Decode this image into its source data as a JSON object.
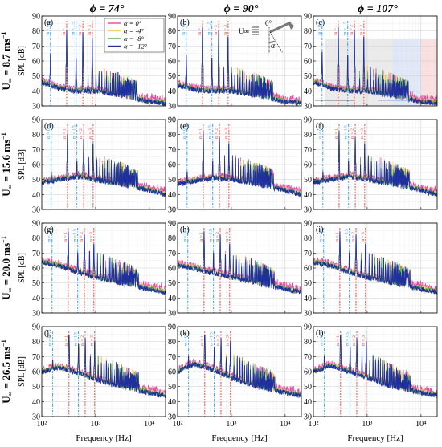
{
  "figure": {
    "column_titles": [
      "ϕ = 74°",
      "ϕ = 90°",
      "ϕ = 107°"
    ],
    "row_titles": [
      {
        "prefix": "U",
        "sub": "∞",
        "value": " = 8.7 ms",
        "sup": "−1"
      },
      {
        "prefix": "U",
        "sub": "∞",
        "value": " = 15.6 ms",
        "sup": "−1"
      },
      {
        "prefix": "U",
        "sub": "∞",
        "value": " = 20.0 ms",
        "sup": "−1"
      },
      {
        "prefix": "U",
        "sub": "∞",
        "value": " = 26.5 ms",
        "sup": "−1"
      }
    ],
    "panel_letters": [
      "(a)",
      "(b)",
      "(c)",
      "(d)",
      "(e)",
      "(f)",
      "(g)",
      "(h)",
      "(i)",
      "(j)",
      "(k)",
      "(l)"
    ],
    "ylabel": "SPL [dB]",
    "xlabel": "Frequency [Hz]",
    "xtick_labels": [
      "10²",
      "10³",
      "10⁴"
    ],
    "inset": {
      "u_label": "U∞",
      "angle_label": "0°",
      "alpha_label": "α"
    },
    "harmonic_labels": {
      "blue": [
        "m = 0.5",
        "m = 1.5"
      ],
      "red": [
        "m = 1",
        "m = 2",
        "m = 3"
      ]
    },
    "colors": {
      "alpha_0": "#e8489e",
      "alpha_m4": "#f3d35b",
      "alpha_m8": "#4caf50",
      "alpha_m12": "#1f2f9e",
      "blue_marker": "#2196f3",
      "red_marker": "#e53935"
    }
  },
  "chart_data": [
    {
      "type": "line",
      "panel": "(a)",
      "xscale": "log",
      "xlim": [
        100,
        20000
      ],
      "ylim": [
        30,
        90
      ],
      "yticks": [
        30,
        40,
        50,
        60,
        70,
        80,
        90
      ],
      "legend": [
        "α = 0°",
        "α = -4°",
        "α = -8°",
        "α = -12°"
      ],
      "legend_loc": "top",
      "fundamental_hz": 290,
      "peaks": [
        [
          145,
          65
        ],
        [
          290,
          80
        ],
        [
          435,
          62
        ],
        [
          580,
          79
        ],
        [
          870,
          75
        ]
      ],
      "baseline": [
        [
          100,
          46
        ],
        [
          200,
          42
        ],
        [
          400,
          40
        ],
        [
          1000,
          40
        ],
        [
          3000,
          37
        ],
        [
          10000,
          33
        ],
        [
          20000,
          32
        ]
      ]
    },
    {
      "type": "line",
      "panel": "(b)",
      "xscale": "log",
      "xlim": [
        100,
        20000
      ],
      "ylim": [
        30,
        90
      ],
      "fundamental_hz": 290,
      "peaks": [
        [
          145,
          64
        ],
        [
          290,
          82
        ],
        [
          435,
          62
        ],
        [
          580,
          80
        ],
        [
          870,
          76
        ]
      ],
      "baseline": [
        [
          100,
          44
        ],
        [
          200,
          41
        ],
        [
          400,
          40
        ],
        [
          1000,
          40
        ],
        [
          3000,
          37
        ],
        [
          10000,
          33
        ],
        [
          20000,
          32
        ]
      ]
    },
    {
      "type": "line",
      "panel": "(c)",
      "xscale": "log",
      "xlim": [
        100,
        20000
      ],
      "ylim": [
        30,
        90
      ],
      "fundamental_hz": 290,
      "peaks": [
        [
          145,
          66
        ],
        [
          290,
          82
        ],
        [
          435,
          64
        ],
        [
          580,
          80
        ],
        [
          870,
          76
        ]
      ],
      "baseline": [
        [
          100,
          46
        ],
        [
          200,
          42
        ],
        [
          400,
          40
        ],
        [
          1000,
          40
        ],
        [
          3000,
          37
        ],
        [
          10000,
          33
        ],
        [
          20000,
          32
        ]
      ]
    },
    {
      "type": "line",
      "panel": "(d)",
      "xscale": "log",
      "xlim": [
        100,
        20000
      ],
      "ylim": [
        30,
        90
      ],
      "fundamental_hz": 300,
      "peaks": [
        [
          150,
          55
        ],
        [
          300,
          80
        ],
        [
          450,
          62
        ],
        [
          600,
          77
        ],
        [
          900,
          74
        ]
      ],
      "baseline": [
        [
          100,
          48
        ],
        [
          200,
          50
        ],
        [
          500,
          52
        ],
        [
          1000,
          50
        ],
        [
          3000,
          47
        ],
        [
          10000,
          43
        ],
        [
          20000,
          40
        ]
      ]
    },
    {
      "type": "line",
      "panel": "(e)",
      "xscale": "log",
      "xlim": [
        100,
        20000
      ],
      "ylim": [
        30,
        90
      ],
      "fundamental_hz": 300,
      "peaks": [
        [
          150,
          55
        ],
        [
          300,
          82
        ],
        [
          450,
          62
        ],
        [
          600,
          78
        ],
        [
          900,
          74
        ]
      ],
      "baseline": [
        [
          100,
          47
        ],
        [
          200,
          49
        ],
        [
          500,
          51
        ],
        [
          1000,
          50
        ],
        [
          3000,
          47
        ],
        [
          10000,
          43
        ],
        [
          20000,
          40
        ]
      ]
    },
    {
      "type": "line",
      "panel": "(f)",
      "xscale": "log",
      "xlim": [
        100,
        20000
      ],
      "ylim": [
        30,
        90
      ],
      "fundamental_hz": 300,
      "peaks": [
        [
          150,
          55
        ],
        [
          300,
          82
        ],
        [
          450,
          62
        ],
        [
          600,
          78
        ],
        [
          900,
          74
        ]
      ],
      "baseline": [
        [
          100,
          48
        ],
        [
          200,
          50
        ],
        [
          500,
          52
        ],
        [
          1000,
          50
        ],
        [
          3000,
          47
        ],
        [
          10000,
          43
        ],
        [
          20000,
          40
        ]
      ]
    },
    {
      "type": "line",
      "panel": "(g)",
      "xscale": "log",
      "xlim": [
        100,
        20000
      ],
      "ylim": [
        30,
        90
      ],
      "fundamental_hz": 310,
      "peaks": [
        [
          155,
          62
        ],
        [
          310,
          84
        ],
        [
          465,
          70
        ],
        [
          620,
          82
        ],
        [
          930,
          76
        ]
      ],
      "baseline": [
        [
          100,
          64
        ],
        [
          200,
          62
        ],
        [
          400,
          58
        ],
        [
          1000,
          54
        ],
        [
          3000,
          50
        ],
        [
          10000,
          46
        ],
        [
          20000,
          44
        ]
      ]
    },
    {
      "type": "line",
      "panel": "(h)",
      "xscale": "log",
      "xlim": [
        100,
        20000
      ],
      "ylim": [
        30,
        90
      ],
      "fundamental_hz": 310,
      "peaks": [
        [
          155,
          62
        ],
        [
          310,
          84
        ],
        [
          465,
          70
        ],
        [
          620,
          82
        ],
        [
          930,
          76
        ]
      ],
      "baseline": [
        [
          100,
          62
        ],
        [
          200,
          60
        ],
        [
          400,
          57
        ],
        [
          1000,
          54
        ],
        [
          3000,
          50
        ],
        [
          10000,
          46
        ],
        [
          20000,
          44
        ]
      ]
    },
    {
      "type": "line",
      "panel": "(i)",
      "xscale": "log",
      "xlim": [
        100,
        20000
      ],
      "ylim": [
        30,
        90
      ],
      "fundamental_hz": 310,
      "peaks": [
        [
          155,
          62
        ],
        [
          310,
          84
        ],
        [
          465,
          70
        ],
        [
          620,
          82
        ],
        [
          930,
          76
        ]
      ],
      "baseline": [
        [
          100,
          64
        ],
        [
          200,
          62
        ],
        [
          400,
          58
        ],
        [
          1000,
          54
        ],
        [
          3000,
          50
        ],
        [
          10000,
          46
        ],
        [
          20000,
          44
        ]
      ]
    },
    {
      "type": "line",
      "panel": "(j)",
      "xscale": "log",
      "xlim": [
        100,
        20000
      ],
      "ylim": [
        30,
        90
      ],
      "fundamental_hz": 320,
      "peaks": [
        [
          160,
          68
        ],
        [
          320,
          84
        ],
        [
          480,
          78
        ],
        [
          640,
          82
        ],
        [
          960,
          80
        ]
      ],
      "baseline": [
        [
          100,
          60
        ],
        [
          200,
          63
        ],
        [
          400,
          60
        ],
        [
          1000,
          55
        ],
        [
          3000,
          50
        ],
        [
          10000,
          46
        ],
        [
          20000,
          44
        ]
      ]
    },
    {
      "type": "line",
      "panel": "(k)",
      "xscale": "log",
      "xlim": [
        100,
        20000
      ],
      "ylim": [
        30,
        90
      ],
      "fundamental_hz": 320,
      "peaks": [
        [
          160,
          70
        ],
        [
          320,
          84
        ],
        [
          480,
          76
        ],
        [
          640,
          82
        ],
        [
          960,
          80
        ]
      ],
      "baseline": [
        [
          100,
          60
        ],
        [
          200,
          65
        ],
        [
          400,
          62
        ],
        [
          1000,
          56
        ],
        [
          3000,
          50
        ],
        [
          10000,
          46
        ],
        [
          20000,
          44
        ]
      ]
    },
    {
      "type": "line",
      "panel": "(l)",
      "xscale": "log",
      "xlim": [
        100,
        20000
      ],
      "ylim": [
        30,
        90
      ],
      "fundamental_hz": 320,
      "peaks": [
        [
          160,
          70
        ],
        [
          320,
          84
        ],
        [
          480,
          76
        ],
        [
          640,
          82
        ],
        [
          960,
          80
        ]
      ],
      "baseline": [
        [
          100,
          60
        ],
        [
          200,
          64
        ],
        [
          400,
          61
        ],
        [
          1000,
          56
        ],
        [
          3000,
          50
        ],
        [
          10000,
          46
        ],
        [
          20000,
          44
        ]
      ]
    }
  ]
}
